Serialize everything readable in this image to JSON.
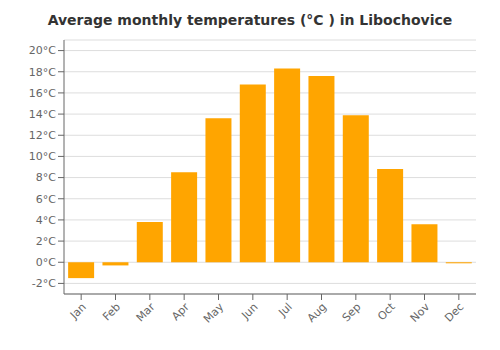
{
  "chart_data": {
    "type": "bar",
    "title": "Average monthly temperatures (°C ) in Libochovice",
    "categories": [
      "Jan",
      "Feb",
      "Mar",
      "Apr",
      "May",
      "Jun",
      "Jul",
      "Aug",
      "Sep",
      "Oct",
      "Nov",
      "Dec"
    ],
    "values": [
      -1.5,
      -0.3,
      3.8,
      8.5,
      13.6,
      16.8,
      18.3,
      17.6,
      13.9,
      8.8,
      3.6,
      -0.1
    ],
    "color": "#FFA500",
    "ylim": [
      -3,
      21
    ],
    "yticks": [
      {
        "value": -2,
        "label": "-2°C"
      },
      {
        "value": 0,
        "label": "0°C"
      },
      {
        "value": 2,
        "label": "2°C"
      },
      {
        "value": 4,
        "label": "4°C"
      },
      {
        "value": 6,
        "label": "6°C"
      },
      {
        "value": 8,
        "label": "8°C"
      },
      {
        "value": 10,
        "label": "10°C"
      },
      {
        "value": 12,
        "label": "12°C"
      },
      {
        "value": 14,
        "label": "14°C"
      },
      {
        "value": 16,
        "label": "16°C"
      },
      {
        "value": 18,
        "label": "18°C"
      },
      {
        "value": 20,
        "label": "20°C"
      }
    ],
    "grid": true
  }
}
